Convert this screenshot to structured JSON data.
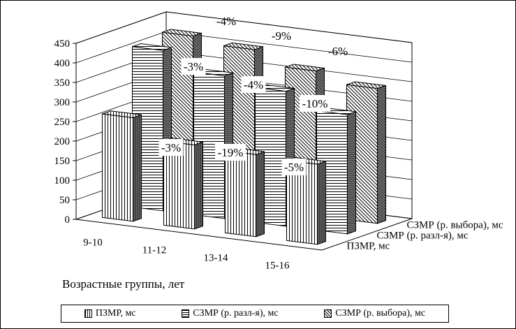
{
  "chart_data": {
    "type": "bar",
    "subtype": "3d-clustered-depth",
    "categories": [
      "9-10",
      "11-12",
      "13-14",
      "15-16"
    ],
    "xlabel": "Возрастные группы, лет",
    "ylabel": "",
    "ylim": [
      0,
      450
    ],
    "yticks": [
      "0",
      "50",
      "100",
      "150",
      "200",
      "250",
      "300",
      "350",
      "400",
      "450"
    ],
    "grid": true,
    "legend_position": "bottom",
    "series": [
      {
        "name": "ПЗМР, мс",
        "values": [
          265,
          215,
          210,
          205
        ],
        "pattern": "vertical-lines",
        "labels": [
          "",
          "",
          "",
          ""
        ]
      },
      {
        "name": "СЗМР (р. разл-я), мс",
        "values": [
          410,
          365,
          345,
          305
        ],
        "pattern": "horizontal-lines",
        "labels": [
          "",
          "-3%",
          "-4%",
          "-10%"
        ]
      },
      {
        "name": "СЗМР (р. выбора), мс",
        "values": [
          420,
          405,
          370,
          345
        ],
        "pattern": "diagonal-lines",
        "labels": [
          "",
          "",
          "",
          ""
        ]
      }
    ],
    "annotations": [
      "-3%",
      "-19%",
      "-5%",
      "-4%",
      "-9%",
      "-6%"
    ]
  }
}
